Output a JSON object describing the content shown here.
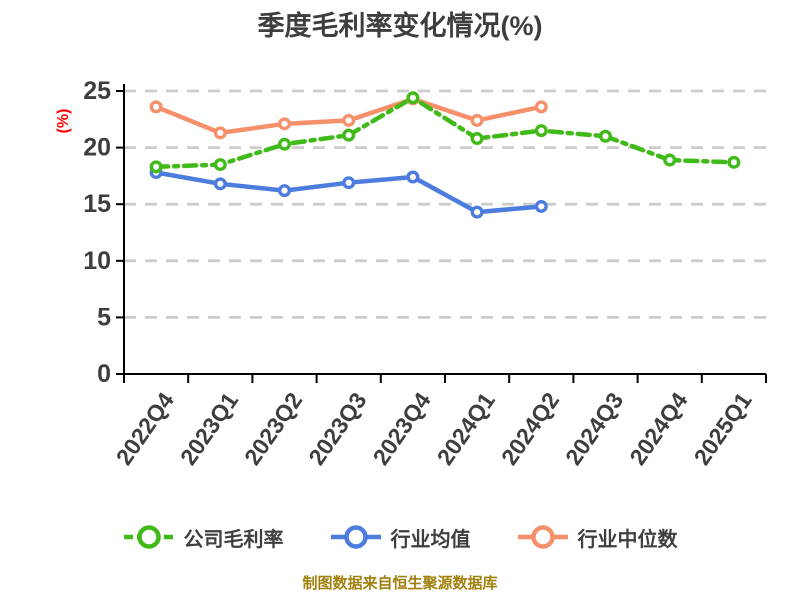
{
  "chart_data": {
    "type": "line",
    "title": "季度毛利率变化情况(%)",
    "ylabel": "(%)",
    "xlabel": "",
    "categories": [
      "2022Q4",
      "2023Q1",
      "2023Q2",
      "2023Q3",
      "2023Q4",
      "2024Q1",
      "2024Q2",
      "2024Q3",
      "2024Q4",
      "2025Q1"
    ],
    "ylim": [
      0,
      25
    ],
    "y_ticks": [
      0,
      5,
      10,
      15,
      20,
      25
    ],
    "grid": "horizontal-dashed",
    "legend_position": "bottom",
    "series": [
      {
        "name": "公司毛利率",
        "color": "#40ba18",
        "line_style": "dash-dot",
        "values": [
          18.3,
          18.5,
          20.3,
          21.1,
          24.4,
          20.8,
          21.5,
          21.0,
          18.9,
          18.7
        ]
      },
      {
        "name": "行业均值",
        "color": "#4d7cdf",
        "line_style": "solid",
        "values": [
          17.8,
          16.8,
          16.2,
          16.9,
          17.4,
          14.3,
          14.8
        ]
      },
      {
        "name": "行业中位数",
        "color": "#f6906b",
        "line_style": "solid",
        "values": [
          23.6,
          21.3,
          22.1,
          22.4,
          24.3,
          22.4,
          23.6
        ]
      }
    ]
  },
  "footer": {
    "text": "制图数据来自恒生聚源数据库"
  },
  "style": {
    "axis_color": "#000000",
    "grid_color": "#cccccc",
    "tick_label_color": "#3e3e3e",
    "title_color": "#3e3e3e",
    "ylabel_color": "#ff0000",
    "footer_color": "#a2800e",
    "marker_fill": "#ffffff"
  }
}
